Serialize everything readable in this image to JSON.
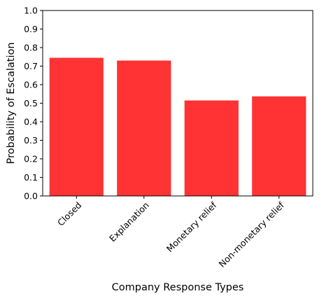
{
  "chart_data": {
    "type": "bar",
    "title": "",
    "xlabel": "Company Response Types",
    "ylabel": "Probability of Escalation",
    "categories": [
      "Closed",
      "Explanation",
      "Monetary relief",
      "Non-monetary relief"
    ],
    "values": [
      0.745,
      0.73,
      0.515,
      0.537
    ],
    "ylim": [
      0.0,
      1.0
    ],
    "yticks": [
      "0.0",
      "0.1",
      "0.2",
      "0.3",
      "0.4",
      "0.5",
      "0.6",
      "0.7",
      "0.8",
      "0.9",
      "1.0"
    ],
    "bar_color": "#ff3333",
    "grid": false,
    "legend": "none"
  }
}
